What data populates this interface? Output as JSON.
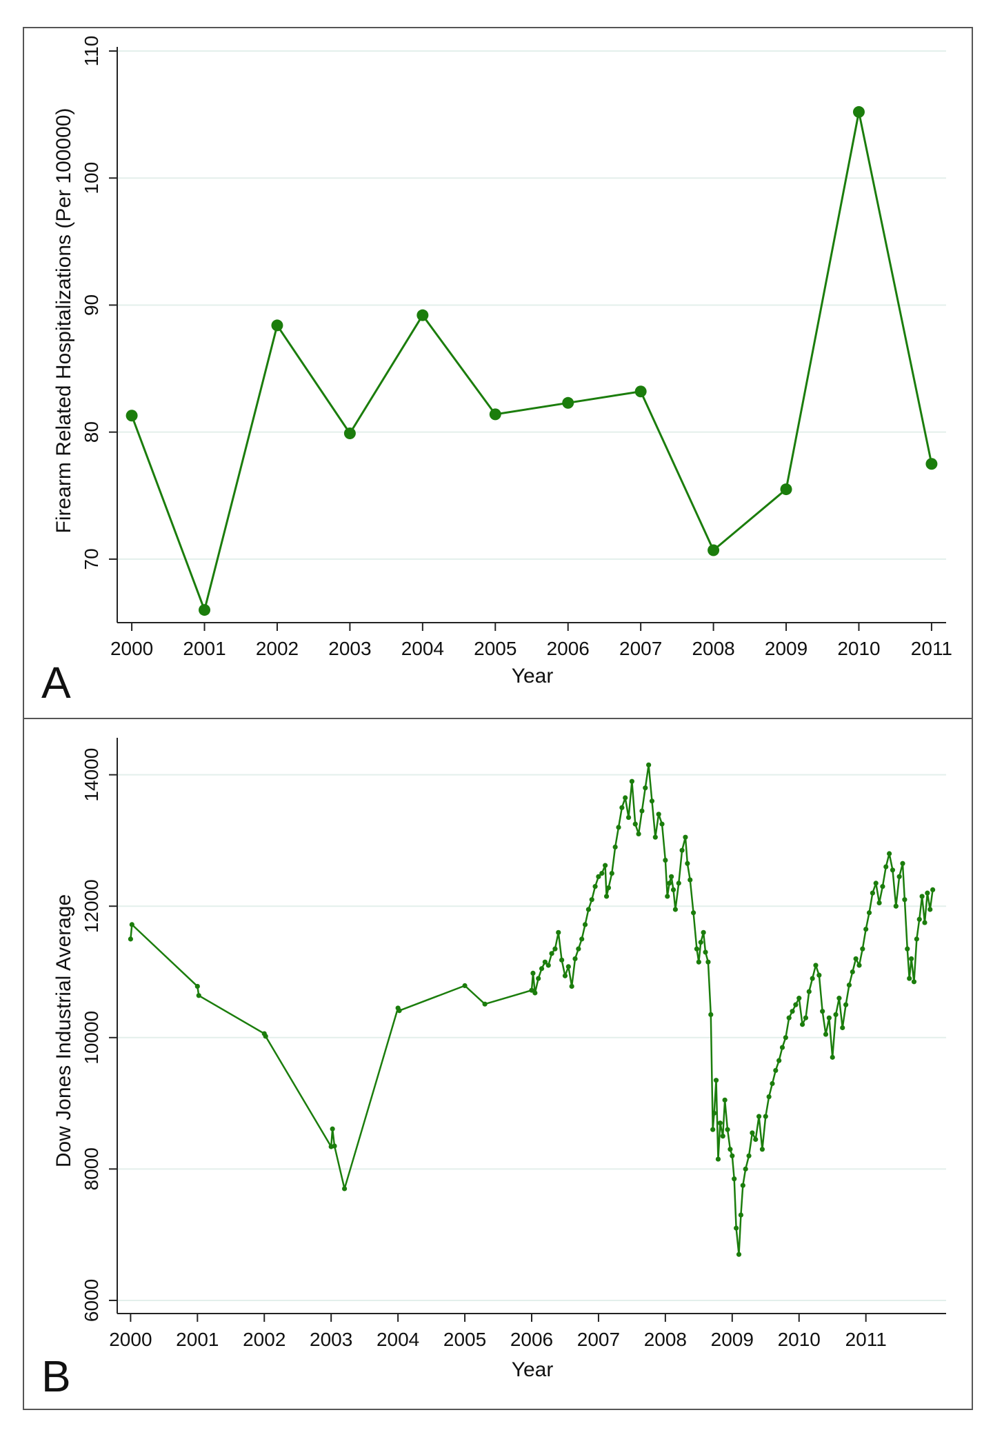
{
  "figure": {
    "panels": [
      "A",
      "B"
    ]
  },
  "colors": {
    "series": "#1b7d0c",
    "grid": "#e3efeb",
    "axis": "#222222"
  },
  "chart_data": [
    {
      "type": "line",
      "panel_label": "A",
      "xlabel": "Year",
      "ylabel": "Firearm Related Hospitalizations (Per 100000)",
      "x": [
        2000,
        2001,
        2002,
        2003,
        2004,
        2005,
        2006,
        2007,
        2008,
        2009,
        2010,
        2011
      ],
      "x_ticks": [
        "2000",
        "2001",
        "2002",
        "2003",
        "2004",
        "2005",
        "2006",
        "2007",
        "2008",
        "2009",
        "2010",
        "2011"
      ],
      "values": [
        81.3,
        66.0,
        88.4,
        79.9,
        89.2,
        81.4,
        82.3,
        83.2,
        70.7,
        75.5,
        105.2,
        77.5
      ],
      "y_ticks": [
        "70",
        "80",
        "90",
        "100",
        "110"
      ],
      "ylim": [
        65,
        110
      ],
      "xlim": [
        1999.8,
        2011.2
      ],
      "grid": true,
      "marker": "large circle"
    },
    {
      "type": "line",
      "panel_label": "B",
      "xlabel": "Year",
      "ylabel": "Dow Jones Industrial Average",
      "x_ticks": [
        "2000",
        "2001",
        "2002",
        "2003",
        "2004",
        "2005",
        "2006",
        "2007",
        "2008",
        "2009",
        "2010",
        "2011"
      ],
      "y_ticks": [
        "6000",
        "8000",
        "10000",
        "12000",
        "14000"
      ],
      "ylim": [
        5800,
        14500
      ],
      "xlim": [
        1999.8,
        2012.2
      ],
      "grid": true,
      "marker": "small dot",
      "points": [
        [
          2000.0,
          11500
        ],
        [
          2000.02,
          11720
        ],
        [
          2001.0,
          10780
        ],
        [
          2001.02,
          10640
        ],
        [
          2002.0,
          10060
        ],
        [
          2002.02,
          10020
        ],
        [
          2003.0,
          8340
        ],
        [
          2003.02,
          8610
        ],
        [
          2003.05,
          8350
        ],
        [
          2003.2,
          7700
        ],
        [
          2004.0,
          10450
        ],
        [
          2004.02,
          10410
        ],
        [
          2005.0,
          10790
        ],
        [
          2005.3,
          10510
        ],
        [
          2006.0,
          10720
        ],
        [
          2006.02,
          10980
        ],
        [
          2006.05,
          10680
        ],
        [
          2006.1,
          10900
        ],
        [
          2006.15,
          11050
        ],
        [
          2006.2,
          11150
        ],
        [
          2006.25,
          11100
        ],
        [
          2006.3,
          11280
        ],
        [
          2006.35,
          11350
        ],
        [
          2006.4,
          11600
        ],
        [
          2006.45,
          11180
        ],
        [
          2006.5,
          10940
        ],
        [
          2006.55,
          11080
        ],
        [
          2006.6,
          10780
        ],
        [
          2006.65,
          11200
        ],
        [
          2006.7,
          11350
        ],
        [
          2006.75,
          11500
        ],
        [
          2006.8,
          11720
        ],
        [
          2006.85,
          11950
        ],
        [
          2006.9,
          12100
        ],
        [
          2006.95,
          12300
        ],
        [
          2007.0,
          12450
        ],
        [
          2007.05,
          12500
        ],
        [
          2007.1,
          12620
        ],
        [
          2007.12,
          12150
        ],
        [
          2007.15,
          12280
        ],
        [
          2007.2,
          12500
        ],
        [
          2007.25,
          12900
        ],
        [
          2007.3,
          13200
        ],
        [
          2007.35,
          13500
        ],
        [
          2007.4,
          13650
        ],
        [
          2007.45,
          13350
        ],
        [
          2007.5,
          13900
        ],
        [
          2007.55,
          13250
        ],
        [
          2007.6,
          13100
        ],
        [
          2007.65,
          13450
        ],
        [
          2007.7,
          13800
        ],
        [
          2007.75,
          14150
        ],
        [
          2007.8,
          13600
        ],
        [
          2007.85,
          13050
        ],
        [
          2007.9,
          13400
        ],
        [
          2007.95,
          13250
        ],
        [
          2008.0,
          12700
        ],
        [
          2008.03,
          12150
        ],
        [
          2008.06,
          12350
        ],
        [
          2008.09,
          12450
        ],
        [
          2008.12,
          12250
        ],
        [
          2008.15,
          11950
        ],
        [
          2008.2,
          12350
        ],
        [
          2008.25,
          12850
        ],
        [
          2008.3,
          13050
        ],
        [
          2008.33,
          12650
        ],
        [
          2008.37,
          12400
        ],
        [
          2008.42,
          11900
        ],
        [
          2008.47,
          11350
        ],
        [
          2008.5,
          11150
        ],
        [
          2008.53,
          11450
        ],
        [
          2008.57,
          11600
        ],
        [
          2008.6,
          11300
        ],
        [
          2008.64,
          11150
        ],
        [
          2008.68,
          10350
        ],
        [
          2008.71,
          8600
        ],
        [
          2008.73,
          8850
        ],
        [
          2008.76,
          9350
        ],
        [
          2008.79,
          8150
        ],
        [
          2008.82,
          8700
        ],
        [
          2008.86,
          8500
        ],
        [
          2008.89,
          9050
        ],
        [
          2008.93,
          8600
        ],
        [
          2008.97,
          8300
        ],
        [
          2009.0,
          8200
        ],
        [
          2009.03,
          7850
        ],
        [
          2009.06,
          7100
        ],
        [
          2009.1,
          6700
        ],
        [
          2009.13,
          7300
        ],
        [
          2009.16,
          7750
        ],
        [
          2009.2,
          8000
        ],
        [
          2009.25,
          8200
        ],
        [
          2009.3,
          8550
        ],
        [
          2009.35,
          8450
        ],
        [
          2009.4,
          8800
        ],
        [
          2009.45,
          8300
        ],
        [
          2009.5,
          8800
        ],
        [
          2009.55,
          9100
        ],
        [
          2009.6,
          9300
        ],
        [
          2009.65,
          9500
        ],
        [
          2009.7,
          9650
        ],
        [
          2009.75,
          9850
        ],
        [
          2009.8,
          10000
        ],
        [
          2009.85,
          10300
        ],
        [
          2009.9,
          10400
        ],
        [
          2009.95,
          10500
        ],
        [
          2010.0,
          10600
        ],
        [
          2010.05,
          10200
        ],
        [
          2010.1,
          10300
        ],
        [
          2010.15,
          10700
        ],
        [
          2010.2,
          10900
        ],
        [
          2010.25,
          11100
        ],
        [
          2010.3,
          10950
        ],
        [
          2010.35,
          10400
        ],
        [
          2010.4,
          10050
        ],
        [
          2010.45,
          10300
        ],
        [
          2010.5,
          9700
        ],
        [
          2010.55,
          10350
        ],
        [
          2010.6,
          10600
        ],
        [
          2010.65,
          10150
        ],
        [
          2010.7,
          10500
        ],
        [
          2010.75,
          10800
        ],
        [
          2010.8,
          11000
        ],
        [
          2010.85,
          11200
        ],
        [
          2010.9,
          11100
        ],
        [
          2010.95,
          11350
        ],
        [
          2011.0,
          11650
        ],
        [
          2011.05,
          11900
        ],
        [
          2011.1,
          12200
        ],
        [
          2011.15,
          12350
        ],
        [
          2011.2,
          12050
        ],
        [
          2011.25,
          12300
        ],
        [
          2011.3,
          12600
        ],
        [
          2011.35,
          12800
        ],
        [
          2011.4,
          12550
        ],
        [
          2011.45,
          12000
        ],
        [
          2011.5,
          12450
        ],
        [
          2011.55,
          12650
        ],
        [
          2011.58,
          12100
        ],
        [
          2011.62,
          11350
        ],
        [
          2011.65,
          10900
        ],
        [
          2011.68,
          11200
        ],
        [
          2011.72,
          10850
        ],
        [
          2011.76,
          11500
        ],
        [
          2011.8,
          11800
        ],
        [
          2011.84,
          12150
        ],
        [
          2011.88,
          11750
        ],
        [
          2011.92,
          12200
        ],
        [
          2011.96,
          11950
        ],
        [
          2012.0,
          12250
        ]
      ]
    }
  ]
}
